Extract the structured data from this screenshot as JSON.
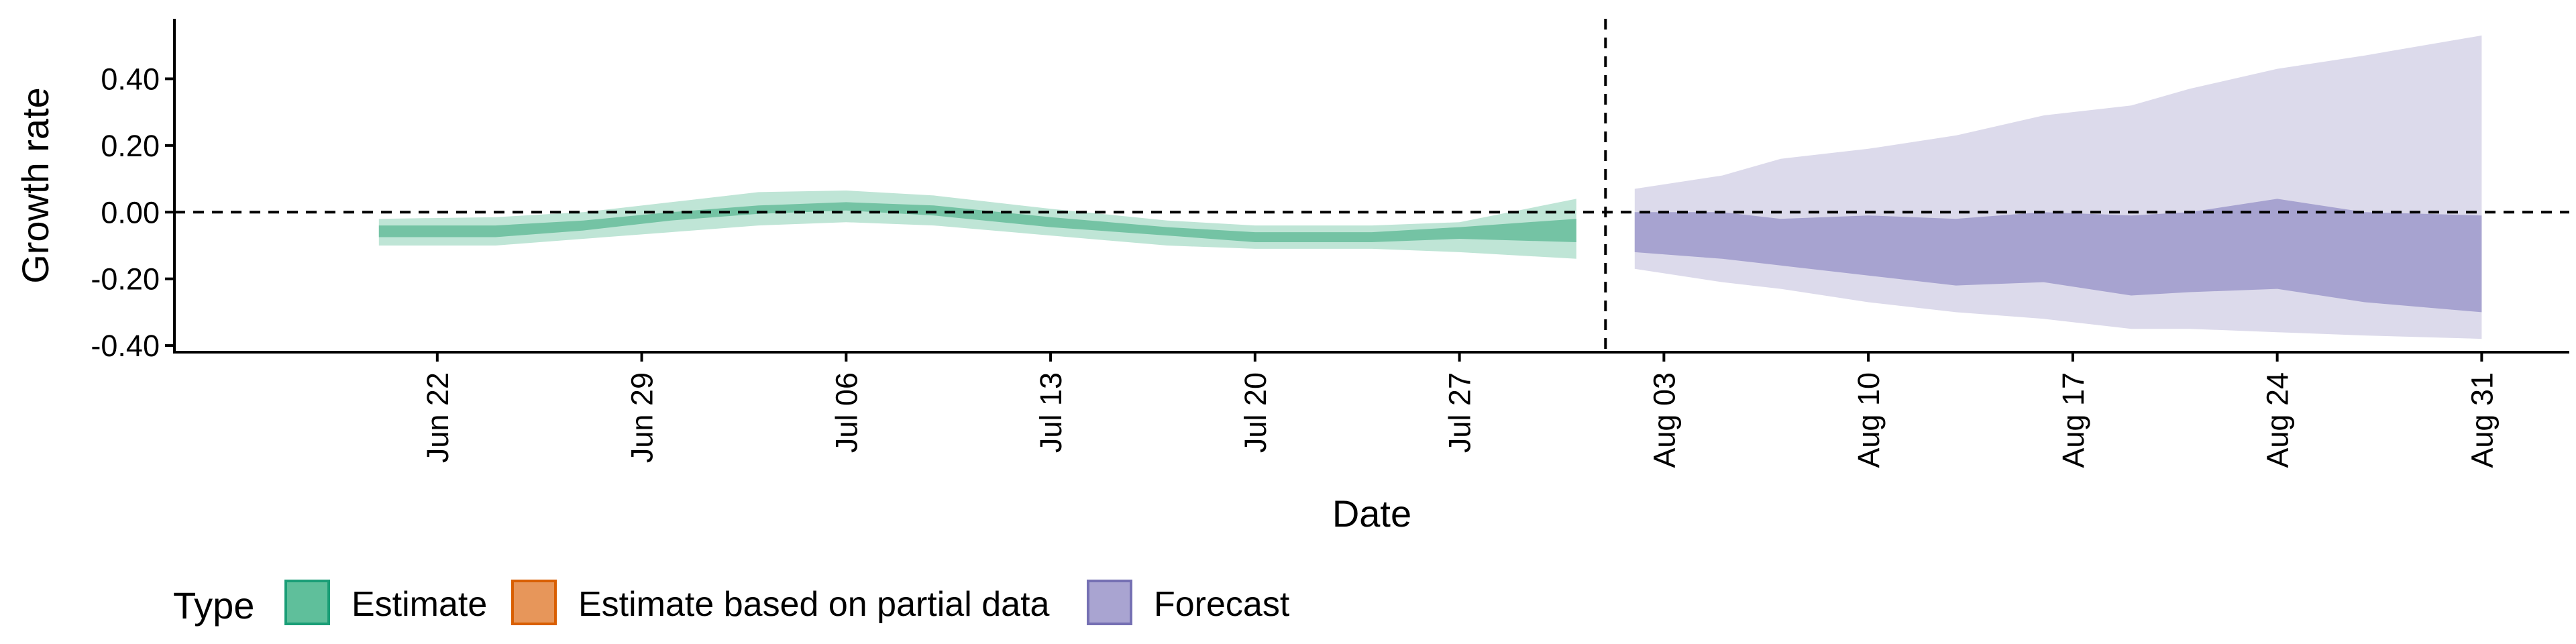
{
  "chart_data": {
    "type": "area",
    "xlabel": "Date",
    "ylabel": "Growth rate",
    "x_range": [
      "2021-06-13",
      "2021-09-03"
    ],
    "ylim": [
      -0.42,
      0.58
    ],
    "y_ticks": [
      -0.4,
      -0.2,
      0.0,
      0.2,
      0.4
    ],
    "y_tick_labels": [
      "-0.40",
      "-0.20",
      "0.00",
      "0.20",
      "0.40"
    ],
    "x_ticks": [
      "2021-06-22",
      "2021-06-29",
      "2021-07-06",
      "2021-07-13",
      "2021-07-20",
      "2021-07-27",
      "2021-08-03",
      "2021-08-10",
      "2021-08-17",
      "2021-08-24",
      "2021-08-31"
    ],
    "x_tick_labels": [
      "Jun 22",
      "Jun 29",
      "Jul 06",
      "Jul 13",
      "Jul 20",
      "Jul 27",
      "Aug 03",
      "Aug 10",
      "Aug 17",
      "Aug 24",
      "Aug 31"
    ],
    "reference_lines": {
      "horizontal_y": 0.0,
      "vertical_date": "2021-08-01"
    },
    "grid": false,
    "legend": {
      "position": "bottom",
      "title": "Type",
      "items": [
        {
          "label": "Estimate",
          "fill": "#5fbf9b",
          "border": "#1b9e77"
        },
        {
          "label": "Estimate based on partial data",
          "fill": "#e7965a",
          "border": "#d95f02"
        },
        {
          "label": "Forecast",
          "fill": "#a9a4d1",
          "border": "#7570b3"
        }
      ]
    },
    "series": [
      {
        "name": "Estimate",
        "outer_color": "#bfe5d6",
        "inner_color": "#74c3a4",
        "points": [
          {
            "date": "2021-06-20",
            "outer": [
              -0.1,
              -0.02
            ],
            "inner": [
              -0.075,
              -0.04
            ]
          },
          {
            "date": "2021-06-24",
            "outer": [
              -0.1,
              -0.015
            ],
            "inner": [
              -0.075,
              -0.04
            ]
          },
          {
            "date": "2021-06-27",
            "outer": [
              -0.08,
              0.0
            ],
            "inner": [
              -0.055,
              -0.025
            ]
          },
          {
            "date": "2021-06-30",
            "outer": [
              -0.06,
              0.03
            ],
            "inner": [
              -0.025,
              0.0
            ]
          },
          {
            "date": "2021-07-03",
            "outer": [
              -0.04,
              0.06
            ],
            "inner": [
              -0.005,
              0.02
            ]
          },
          {
            "date": "2021-07-06",
            "outer": [
              -0.03,
              0.065
            ],
            "inner": [
              0.005,
              0.03
            ]
          },
          {
            "date": "2021-07-09",
            "outer": [
              -0.04,
              0.05
            ],
            "inner": [
              -0.01,
              0.02
            ]
          },
          {
            "date": "2021-07-13",
            "outer": [
              -0.07,
              0.01
            ],
            "inner": [
              -0.045,
              -0.015
            ]
          },
          {
            "date": "2021-07-17",
            "outer": [
              -0.1,
              -0.025
            ],
            "inner": [
              -0.07,
              -0.045
            ]
          },
          {
            "date": "2021-07-20",
            "outer": [
              -0.11,
              -0.04
            ],
            "inner": [
              -0.09,
              -0.06
            ]
          },
          {
            "date": "2021-07-24",
            "outer": [
              -0.11,
              -0.04
            ],
            "inner": [
              -0.09,
              -0.06
            ]
          },
          {
            "date": "2021-07-27",
            "outer": [
              -0.12,
              -0.03
            ],
            "inner": [
              -0.08,
              -0.045
            ]
          },
          {
            "date": "2021-07-31",
            "outer": [
              -0.14,
              0.04
            ],
            "inner": [
              -0.09,
              -0.02
            ]
          }
        ]
      },
      {
        "name": "Forecast",
        "outer_color": "#dcdaeb",
        "inner_color": "#a7a3d0",
        "points": [
          {
            "date": "2021-08-02",
            "outer": [
              -0.17,
              0.07
            ],
            "inner": [
              -0.12,
              0.0
            ]
          },
          {
            "date": "2021-08-05",
            "outer": [
              -0.21,
              0.11
            ],
            "inner": [
              -0.14,
              0.0
            ]
          },
          {
            "date": "2021-08-07",
            "outer": [
              -0.23,
              0.16
            ],
            "inner": [
              -0.16,
              -0.02
            ]
          },
          {
            "date": "2021-08-10",
            "outer": [
              -0.27,
              0.19
            ],
            "inner": [
              -0.19,
              -0.01
            ]
          },
          {
            "date": "2021-08-13",
            "outer": [
              -0.3,
              0.23
            ],
            "inner": [
              -0.22,
              -0.02
            ]
          },
          {
            "date": "2021-08-16",
            "outer": [
              -0.32,
              0.29
            ],
            "inner": [
              -0.21,
              0.0
            ]
          },
          {
            "date": "2021-08-19",
            "outer": [
              -0.35,
              0.32
            ],
            "inner": [
              -0.25,
              -0.01
            ]
          },
          {
            "date": "2021-08-21",
            "outer": [
              -0.35,
              0.37
            ],
            "inner": [
              -0.24,
              0.0
            ]
          },
          {
            "date": "2021-08-24",
            "outer": [
              -0.36,
              0.43
            ],
            "inner": [
              -0.23,
              0.04
            ]
          },
          {
            "date": "2021-08-27",
            "outer": [
              -0.37,
              0.47
            ],
            "inner": [
              -0.27,
              0.0
            ]
          },
          {
            "date": "2021-08-31",
            "outer": [
              -0.38,
              0.53
            ],
            "inner": [
              -0.3,
              -0.01
            ]
          }
        ]
      }
    ]
  }
}
